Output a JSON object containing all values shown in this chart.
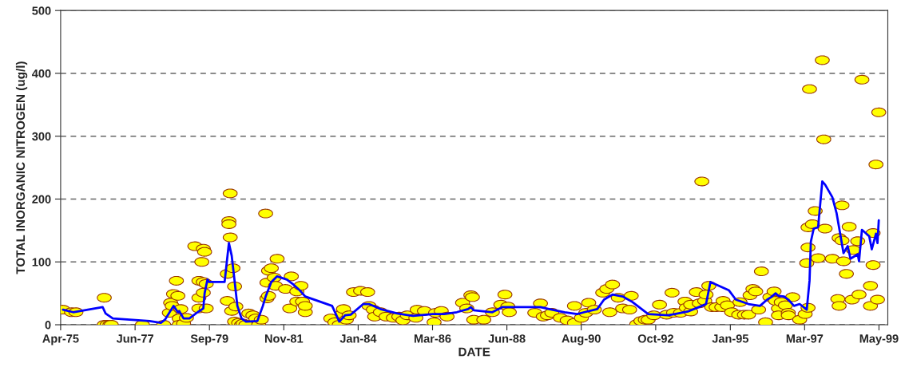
{
  "chart_data": {
    "type": "scatter",
    "xlabel": "DATE",
    "ylabel": "TOTAL INORGANIC NITROGEN (ug/l)",
    "xlim": [
      "1975-04-20",
      "1999-08-20"
    ],
    "xticks": [
      {
        "value": "1975-04-20",
        "label": "Apr-75"
      },
      {
        "value": "1977-06-28",
        "label": "Jun-77"
      },
      {
        "value": "1979-09-05",
        "label": "Sep-79"
      },
      {
        "value": "1981-11-12",
        "label": "Nov-81"
      },
      {
        "value": "1984-01-20",
        "label": "Jan-84"
      },
      {
        "value": "1986-03-29",
        "label": "Mar-86"
      },
      {
        "value": "1988-06-05",
        "label": "Jun-88"
      },
      {
        "value": "1990-08-13",
        "label": "Aug-90"
      },
      {
        "value": "1992-10-21",
        "label": "Oct-92"
      },
      {
        "value": "1995-01-01",
        "label": "Jan-95"
      },
      {
        "value": "1997-03-09",
        "label": "Mar-97"
      },
      {
        "value": "1999-05-17",
        "label": "May-99"
      }
    ],
    "ylim": [
      0,
      500
    ],
    "yticks": [
      0,
      100,
      200,
      300,
      400,
      500
    ],
    "grid": "y",
    "marker": "circle",
    "series": [
      {
        "color": "#ffff00",
        "x": [
          "1975-05-15",
          "1975-08-15",
          "1975-10-01",
          "1976-08-01",
          "1976-08-01",
          "1976-09-01",
          "1976-10-01",
          "1976-10-15",
          "1977-09-15",
          "1978-05-01",
          "1978-07-01",
          "1978-07-15",
          "1978-08-01",
          "1978-08-15",
          "1978-09-15",
          "1978-10-01",
          "1978-10-15",
          "1978-10-15",
          "1978-11-01",
          "1978-12-01",
          "1979-01-01",
          "1979-04-01",
          "1979-05-15",
          "1979-05-15",
          "1979-05-15",
          "1979-06-15",
          "1979-07-01",
          "1979-07-01",
          "1979-07-01",
          "1979-07-15",
          "1979-08-01",
          "1979-08-01",
          "1980-03-15",
          "1980-03-15",
          "1980-04-01",
          "1980-04-01",
          "1980-04-15",
          "1980-04-15",
          "1980-05-01",
          "1980-05-15",
          "1980-06-01",
          "1980-06-01",
          "1980-06-15",
          "1980-07-15",
          "1980-08-15",
          "1980-09-01",
          "1980-10-01",
          "1980-11-01",
          "1980-12-15",
          "1981-01-15",
          "1981-02-15",
          "1981-03-15",
          "1981-05-01",
          "1981-05-15",
          "1981-05-15",
          "1981-06-01",
          "1981-06-01",
          "1981-07-01",
          "1981-08-01",
          "1981-08-15",
          "1981-09-01",
          "1981-12-01",
          "1982-01-15",
          "1982-02-01",
          "1982-04-01",
          "1982-04-01",
          "1982-05-15",
          "1982-06-01",
          "1982-07-01",
          "1982-07-01",
          "1983-04-01",
          "1983-05-15",
          "1983-07-01",
          "1983-08-01",
          "1983-08-15",
          "1983-09-15",
          "1983-10-15",
          "1983-12-01",
          "1984-02-15",
          "1984-05-01",
          "1984-05-15",
          "1984-07-01",
          "1984-07-15",
          "1984-09-15",
          "1984-11-15",
          "1985-02-01",
          "1985-04-01",
          "1985-05-15",
          "1985-07-01",
          "1985-10-01",
          "1985-10-15",
          "1986-01-01",
          "1986-04-15",
          "1986-05-01",
          "1986-07-01",
          "1986-09-01",
          "1987-02-15",
          "1987-04-01",
          "1987-05-15",
          "1987-06-01",
          "1987-06-15",
          "1987-10-01",
          "1988-01-01",
          "1988-04-01",
          "1988-05-15",
          "1988-06-15",
          "1988-07-01",
          "1989-04-01",
          "1989-06-01",
          "1989-07-01",
          "1989-08-15",
          "1989-10-01",
          "1990-01-01",
          "1990-03-15",
          "1990-06-01",
          "1990-06-01",
          "1990-08-15",
          "1990-10-01",
          "1990-11-01",
          "1991-01-01",
          "1991-04-01",
          "1991-05-15",
          "1991-06-15",
          "1991-07-15",
          "1991-09-15",
          "1991-11-01",
          "1992-01-15",
          "1992-02-01",
          "1992-04-01",
          "1992-05-15",
          "1992-07-01",
          "1992-08-01",
          "1992-10-01",
          "1992-12-01",
          "1993-02-15",
          "1993-04-15",
          "1993-05-01",
          "1993-07-15",
          "1993-09-01",
          "1993-09-15",
          "1993-11-01",
          "1993-11-01",
          "1994-01-01",
          "1994-02-01",
          "1994-03-01",
          "1994-04-01",
          "1994-04-15",
          "1994-05-15",
          "1994-06-15",
          "1994-08-01",
          "1994-10-01",
          "1994-10-15",
          "1994-12-01",
          "1995-01-15",
          "1995-04-01",
          "1995-04-15",
          "1995-06-01",
          "1995-07-15",
          "1995-08-01",
          "1995-09-01",
          "1995-10-01",
          "1995-11-01",
          "1995-12-01",
          "1996-01-15",
          "1996-03-01",
          "1996-04-15",
          "1996-05-01",
          "1996-06-01",
          "1996-06-01",
          "1996-07-01",
          "1996-08-15",
          "1996-09-15",
          "1996-09-15",
          "1996-11-01",
          "1997-01-15",
          "1997-03-15",
          "1997-04-01",
          "1997-04-15",
          "1997-04-15",
          "1997-04-15",
          "1997-05-01",
          "1997-06-01",
          "1997-07-01",
          "1997-08-01",
          "1997-09-15",
          "1997-10-01",
          "1997-10-15",
          "1998-01-01",
          "1998-03-01",
          "1998-03-15",
          "1998-03-15",
          "1998-04-15",
          "1998-04-15",
          "1998-05-01",
          "1998-06-01",
          "1998-07-01",
          "1998-08-01",
          "1998-08-15",
          "1998-10-01",
          "1998-10-15",
          "1998-11-15",
          "1999-02-15",
          "1999-02-15",
          "1999-03-15",
          "1999-03-15",
          "1999-04-15",
          "1999-05-01",
          "1999-05-15"
        ],
        "values": [
          24,
          20,
          20,
          43,
          0,
          0,
          0,
          0,
          0,
          0,
          19,
          35,
          30,
          49,
          70,
          46,
          10,
          0,
          25,
          2,
          11,
          125,
          70,
          43,
          26,
          100,
          51,
          121,
          68,
          116,
          26,
          65,
          81,
          38,
          165,
          160,
          209,
          139,
          22,
          90,
          61,
          5,
          29,
          3,
          0,
          2,
          0,
          18,
          15,
          10,
          0,
          8,
          177,
          67,
          42,
          86,
          46,
          90,
          75,
          62,
          105,
          57,
          26,
          77,
          53,
          37,
          62,
          37,
          20,
          30,
          10,
          4,
          0,
          17,
          25,
          8,
          15,
          52,
          54,
          52,
          30,
          24,
          13,
          20,
          13,
          11,
          13,
          7,
          15,
          11,
          24,
          22,
          4,
          19,
          22,
          13,
          35,
          26,
          47,
          44,
          8,
          8,
          20,
          32,
          48,
          29,
          20,
          19,
          34,
          13,
          15,
          19,
          11,
          7,
          30,
          3,
          11,
          19,
          35,
          24,
          51,
          57,
          20,
          64,
          43,
          26,
          24,
          46,
          1,
          6,
          8,
          8,
          15,
          32,
          16,
          51,
          19,
          19,
          37,
          27,
          21,
          32,
          52,
          34,
          228,
          38,
          48,
          62,
          28,
          28,
          28,
          38,
          31,
          20,
          16,
          36,
          16,
          16,
          47,
          57,
          53,
          24,
          85,
          4,
          44,
          53,
          38,
          26,
          15,
          36,
          31,
          19,
          15,
          44,
          8,
          17,
          98,
          27,
          123,
          155,
          375,
          160,
          181,
          106,
          421,
          295,
          153,
          105,
          41,
          30,
          138,
          190,
          134,
          101,
          81,
          156,
          40,
          119,
          133,
          48,
          390,
          62,
          30,
          95,
          146,
          255,
          40,
          338
        ]
      },
      {
        "type": "line",
        "color": "#0000ff",
        "marker": "none",
        "line_style": "solid",
        "x": [
          "1975-05-15",
          "1975-09-01",
          "1976-07-15",
          "1976-08-15",
          "1976-11-01",
          "1977-12-01",
          "1978-04-01",
          "1978-05-15",
          "1978-08-15",
          "1978-10-01",
          "1978-10-15",
          "1978-12-01",
          "1979-02-01",
          "1979-05-01",
          "1979-07-01",
          "1979-07-15",
          "1979-08-15",
          "1979-09-01",
          "1980-02-15",
          "1980-04-01",
          "1980-05-01",
          "1980-06-01",
          "1980-07-01",
          "1980-08-15",
          "1980-10-01",
          "1981-02-01",
          "1981-04-01",
          "1981-05-01",
          "1981-07-01",
          "1981-09-01",
          "1981-12-15",
          "1982-02-15",
          "1982-05-01",
          "1982-07-01",
          "1983-04-15",
          "1983-07-01",
          "1983-09-01",
          "1983-11-01",
          "1984-03-15",
          "1984-05-15",
          "1984-09-15",
          "1985-03-15",
          "1985-09-01",
          "1986-04-01",
          "1986-08-01",
          "1986-12-15",
          "1987-04-15",
          "1987-05-15",
          "1987-06-15",
          "1988-01-01",
          "1988-04-15",
          "1989-06-01",
          "1989-09-01",
          "1990-02-15",
          "1990-07-01",
          "1990-09-15",
          "1991-02-01",
          "1991-04-15",
          "1991-07-15",
          "1991-11-01",
          "1992-02-15",
          "1992-08-01",
          "1993-03-01",
          "1993-05-15",
          "1993-10-01",
          "1994-03-01",
          "1994-04-15",
          "1994-06-01",
          "1994-09-15",
          "1994-12-15",
          "1995-03-01",
          "1995-07-15",
          "1995-11-15",
          "1996-02-01",
          "1996-03-15",
          "1996-05-01",
          "1996-06-01",
          "1996-08-01",
          "1996-09-15",
          "1996-11-15",
          "1997-01-15",
          "1997-04-01",
          "1997-05-01",
          "1997-05-15",
          "1997-06-15",
          "1997-08-01",
          "1997-09-15",
          "1997-10-15",
          "1998-01-01",
          "1998-02-15",
          "1998-04-01",
          "1998-05-01",
          "1998-06-15",
          "1998-07-15",
          "1998-10-01",
          "1998-10-15",
          "1998-11-15",
          "1999-02-01",
          "1999-03-01",
          "1999-04-15",
          "1999-05-01",
          "1999-05-15"
        ],
        "values": [
          24,
          20,
          28,
          18,
          10,
          6,
          3,
          8,
          30,
          20,
          22,
          10,
          10,
          20,
          26,
          50,
          72,
          68,
          68,
          130,
          110,
          70,
          30,
          10,
          5,
          6,
          30,
          45,
          68,
          77,
          72,
          65,
          55,
          45,
          30,
          5,
          15,
          16,
          33,
          33,
          25,
          18,
          14,
          17,
          17,
          20,
          25,
          28,
          23,
          20,
          28,
          28,
          25,
          20,
          17,
          20,
          25,
          40,
          48,
          45,
          36,
          17,
          15,
          17,
          21,
          30,
          33,
          68,
          61,
          55,
          40,
          33,
          30,
          40,
          44,
          50,
          46,
          45,
          40,
          30,
          33,
          24,
          70,
          132,
          153,
          155,
          228,
          223,
          203,
          178,
          140,
          114,
          125,
          105,
          112,
          101,
          151,
          141,
          120,
          145,
          130,
          166
        ]
      }
    ]
  }
}
